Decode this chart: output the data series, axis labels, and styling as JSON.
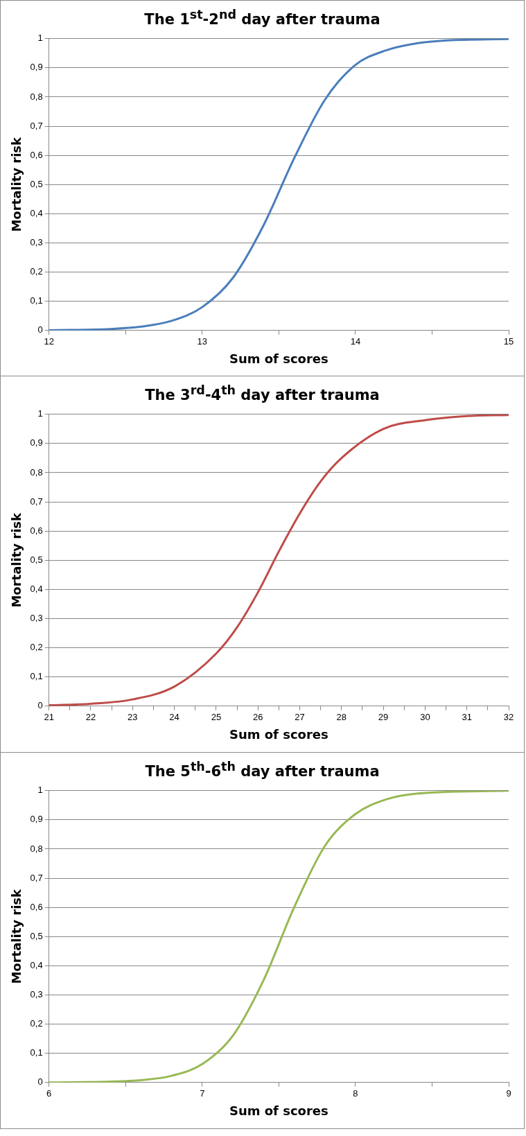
{
  "chart_data": [
    {
      "type": "line",
      "title": "The 1$^{st}$-2$^{nd}$ day after trauma",
      "xlabel": "Sum of scores",
      "ylabel": "Mortality risk",
      "grid": "y",
      "marker": "none",
      "line_style": "solid",
      "xlim": [
        12,
        15
      ],
      "xticks": [
        12,
        {
          "value": 12.5,
          "label": null
        },
        13,
        {
          "value": 13.5,
          "label": null
        },
        14,
        {
          "value": 14.5,
          "label": null
        },
        15
      ],
      "ylim": [
        0,
        1
      ],
      "yticks": [
        {
          "value": 0,
          "label": "0"
        },
        {
          "value": 0.1,
          "label": "0,1"
        },
        {
          "value": 0.2,
          "label": "0,2"
        },
        {
          "value": 0.3,
          "label": "0,3"
        },
        {
          "value": 0.4,
          "label": "0,4"
        },
        {
          "value": 0.5,
          "label": "0,5"
        },
        {
          "value": 0.6,
          "label": "0,6"
        },
        {
          "value": 0.7,
          "label": "0,7"
        },
        {
          "value": 0.8,
          "label": "0,8"
        },
        {
          "value": 0.9,
          "label": "0,9"
        },
        {
          "value": 1,
          "label": "1"
        }
      ],
      "series": [
        {
          "color": "#4a7ebb",
          "x": [
            12,
            12.4,
            12.6,
            12.8,
            13,
            13.2,
            13.4,
            13.6,
            13.8,
            14,
            14.2,
            14.4,
            14.6,
            15
          ],
          "values": [
            0.001,
            0.005,
            0.013,
            0.033,
            0.08,
            0.18,
            0.36,
            0.59,
            0.79,
            0.91,
            0.96,
            0.984,
            0.994,
            0.999
          ]
        }
      ]
    },
    {
      "type": "line",
      "title": "The 3$^{rd}$-4$^{th}$ day after trauma",
      "xlabel": "Sum of scores",
      "ylabel": "Mortality risk",
      "grid": "y",
      "marker": "none",
      "line_style": "solid",
      "xlim": [
        21,
        32
      ],
      "xticks": [
        21,
        {
          "value": 21.5,
          "label": null
        },
        22,
        {
          "value": 22.5,
          "label": null
        },
        23,
        {
          "value": 23.5,
          "label": null
        },
        24,
        {
          "value": 24.5,
          "label": null
        },
        25,
        {
          "value": 25.5,
          "label": null
        },
        26,
        {
          "value": 26.5,
          "label": null
        },
        27,
        {
          "value": 27.5,
          "label": null
        },
        28,
        {
          "value": 28.5,
          "label": null
        },
        29,
        {
          "value": 29.5,
          "label": null
        },
        30,
        {
          "value": 30.5,
          "label": null
        },
        31,
        {
          "value": 31.5,
          "label": null
        },
        32
      ],
      "ylim": [
        0,
        1
      ],
      "yticks": [
        {
          "value": 0,
          "label": "0"
        },
        {
          "value": 0.1,
          "label": "0,1"
        },
        {
          "value": 0.2,
          "label": "0,2"
        },
        {
          "value": 0.3,
          "label": "0,3"
        },
        {
          "value": 0.4,
          "label": "0,4"
        },
        {
          "value": 0.5,
          "label": "0,5"
        },
        {
          "value": 0.6,
          "label": "0,6"
        },
        {
          "value": 0.7,
          "label": "0,7"
        },
        {
          "value": 0.8,
          "label": "0,8"
        },
        {
          "value": 0.9,
          "label": "0,9"
        },
        {
          "value": 1,
          "label": "1"
        }
      ],
      "series": [
        {
          "color": "#be4b48",
          "x": [
            21,
            22,
            23,
            24,
            25,
            25.5,
            26,
            26.5,
            27,
            27.5,
            28,
            29,
            30,
            31,
            32
          ],
          "values": [
            0.003,
            0.008,
            0.023,
            0.067,
            0.18,
            0.27,
            0.39,
            0.53,
            0.66,
            0.77,
            0.85,
            0.95,
            0.98,
            0.994,
            0.998
          ]
        }
      ]
    },
    {
      "type": "line",
      "title": "The 5$^{th}$-6$^{th}$ day after trauma",
      "xlabel": "Sum of scores",
      "ylabel": "Mortality risk",
      "grid": "y",
      "marker": "none",
      "line_style": "solid",
      "xlim": [
        6,
        9
      ],
      "xticks": [
        6,
        {
          "value": 6.5,
          "label": null
        },
        7,
        {
          "value": 7.5,
          "label": null
        },
        8,
        {
          "value": 8.5,
          "label": null
        },
        9
      ],
      "ylim": [
        0,
        1
      ],
      "yticks": [
        {
          "value": 0,
          "label": "0"
        },
        {
          "value": 0.1,
          "label": "0,1"
        },
        {
          "value": 0.2,
          "label": "0,2"
        },
        {
          "value": 0.3,
          "label": "0,3"
        },
        {
          "value": 0.4,
          "label": "0,4"
        },
        {
          "value": 0.5,
          "label": "0,5"
        },
        {
          "value": 0.6,
          "label": "0,6"
        },
        {
          "value": 0.7,
          "label": "0,7"
        },
        {
          "value": 0.8,
          "label": "0,8"
        },
        {
          "value": 0.9,
          "label": "0,9"
        },
        {
          "value": 1,
          "label": "1"
        }
      ],
      "series": [
        {
          "color": "#98b954",
          "x": [
            6,
            6.4,
            6.6,
            6.8,
            7,
            7.2,
            7.4,
            7.6,
            7.8,
            8,
            8.2,
            8.4,
            9
          ],
          "values": [
            0.0004,
            0.003,
            0.008,
            0.023,
            0.063,
            0.16,
            0.35,
            0.6,
            0.81,
            0.92,
            0.97,
            0.99,
            1
          ]
        }
      ]
    }
  ]
}
